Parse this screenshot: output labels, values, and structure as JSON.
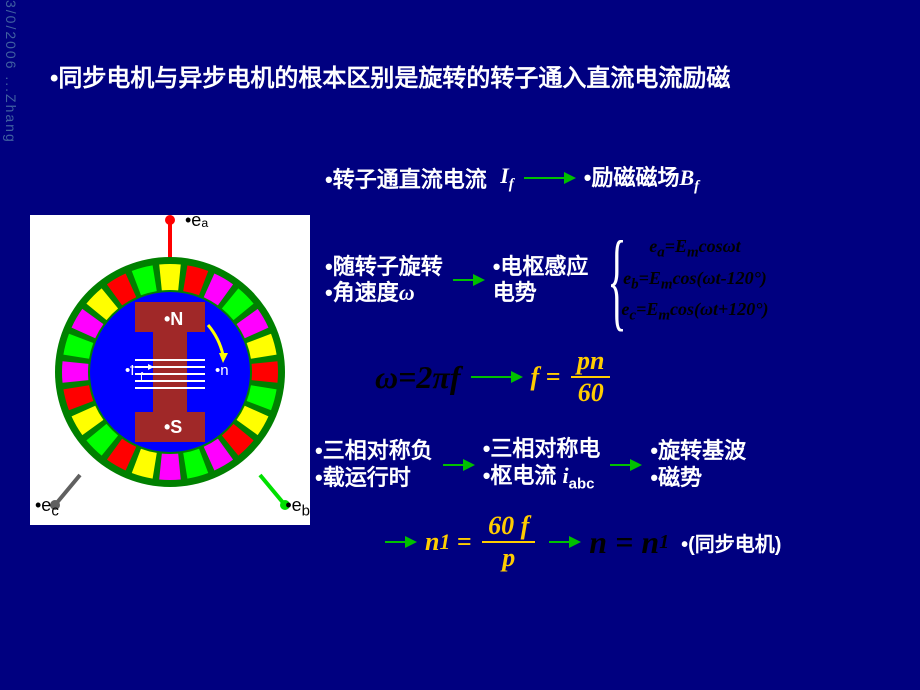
{
  "date_stamp": "3/0/2006 ...Zhang",
  "title": "•同步电机与异步电机的根本区别是旋转的转子通入直流电流励磁",
  "motor": {
    "terminal_a": "•eₐ",
    "terminal_b": "•e_b",
    "terminal_c": "•eₑ",
    "pole_n": "•N",
    "pole_s": "•S",
    "current_label": "•I_f",
    "rotation_label": "•n",
    "background": "#ffffff",
    "stator_color": "#008000",
    "rotor_body": "#a02828",
    "rotor_inner": "#0000ff",
    "slot_colors": [
      "#ffff00",
      "#ff00ff",
      "#ff0000",
      "#00ff00",
      "#ff00ff",
      "#ffff00"
    ],
    "terminal_a_color": "#ff0000",
    "terminal_b_color": "#00e000",
    "terminal_c_color": "#606060"
  },
  "row1": {
    "text1": "•转子通直流电流",
    "var": "I",
    "var_sub": "f",
    "text2": "•励磁磁场",
    "var2": "B",
    "var2_sub": "f"
  },
  "row2": {
    "col1_line1": "•随转子旋转",
    "col1_line2": "•角速度",
    "omega": "ω",
    "col2_line1": "•电枢感应",
    "col2_line2": "电势",
    "eq1": "eₐ=Eₘcosωt",
    "eq2": "e_b=Eₘcos(ωt-120°)",
    "eq3": "eₑ=Eₘcos(ωt+120°)"
  },
  "formula1": {
    "lhs": "ω=2πf",
    "rhs_eq": "f",
    "rhs_num": "pn",
    "rhs_den": "60"
  },
  "row3": {
    "col1_line1": "•三相对称负",
    "col1_line2": "•载运行时",
    "col2_line1": "•三相对称电",
    "col2_line2": "•枢电流",
    "col2_var": "i",
    "col2_sub": "abc",
    "col3_line1": "•旋转基波",
    "col3_line2": "•磁势"
  },
  "formula2": {
    "lhs_var": "n",
    "lhs_sub": "1",
    "num": "60 f",
    "den": "p",
    "rhs_lhs": "n",
    "rhs_eq": "=",
    "rhs_rhs": "n",
    "rhs_sub": "1",
    "note": "•(同步电机)"
  },
  "colors": {
    "arrow": "#00c000",
    "formula": "#ffcc00",
    "text": "#ffffff",
    "formula_black": "#000000"
  }
}
